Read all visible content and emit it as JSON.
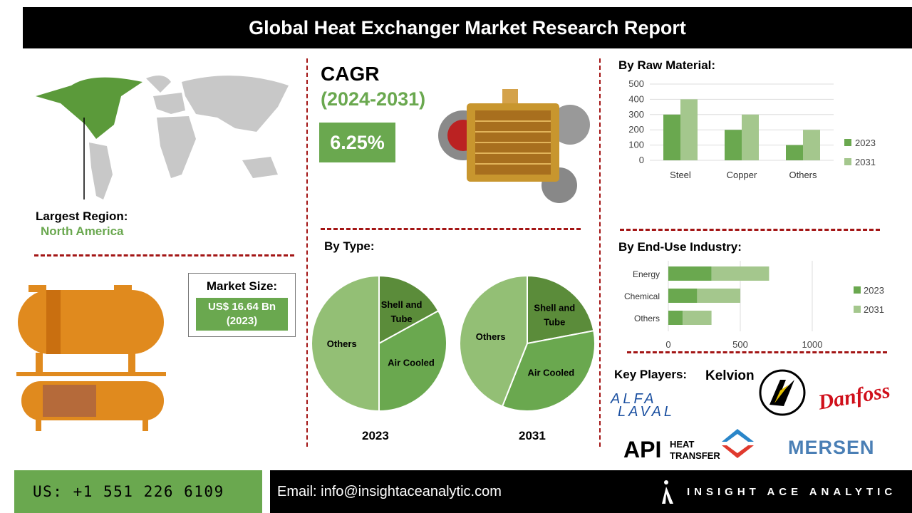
{
  "title": "Global Heat Exchanger Market Research Report",
  "region": {
    "label": "Largest Region:",
    "value": "North America"
  },
  "cagr": {
    "label": "CAGR",
    "period": "(2024-2031)",
    "value": "6.25%"
  },
  "market_size": {
    "label": "Market Size:",
    "value": "US$ 16.64 Bn",
    "year": "(2023)"
  },
  "colors": {
    "dark_green": "#5b8c3a",
    "mid_green": "#6aa84f",
    "light_green": "#a4c78d",
    "pie_others": "#93bf75",
    "divider": "#a31515"
  },
  "chart_data": [
    {
      "type": "bar",
      "title": "By Raw Material:",
      "categories": [
        "Steel",
        "Copper",
        "Others"
      ],
      "series": [
        {
          "name": "2023",
          "values": [
            300,
            200,
            100
          ]
        },
        {
          "name": "2031",
          "values": [
            400,
            300,
            200
          ]
        }
      ],
      "ylim": [
        0,
        500
      ],
      "yticks": [
        "0",
        "100",
        "200",
        "300",
        "400",
        "500"
      ],
      "grid": true,
      "legend": "right"
    },
    {
      "type": "bar",
      "orientation": "horizontal",
      "stacked": true,
      "title": "By End-Use Industry:",
      "categories": [
        "Energy",
        "Chemical",
        "Others"
      ],
      "series": [
        {
          "name": "2023",
          "values": [
            300,
            200,
            100
          ]
        },
        {
          "name": "2031",
          "values": [
            400,
            300,
            200
          ]
        }
      ],
      "xlim": [
        0,
        1000
      ],
      "xticks": [
        "0",
        "500",
        "1000"
      ],
      "grid": true,
      "legend": "right"
    },
    {
      "type": "pie",
      "title": "By Type:",
      "label": "2023",
      "slices": [
        {
          "name": "Shell and Tube",
          "value": 17
        },
        {
          "name": "Air Cooled",
          "value": 33
        },
        {
          "name": "Others",
          "value": 50
        }
      ]
    },
    {
      "type": "pie",
      "label": "2031",
      "slices": [
        {
          "name": "Shell and Tube",
          "value": 22
        },
        {
          "name": "Air Cooled",
          "value": 34
        },
        {
          "name": "Others",
          "value": 44
        }
      ]
    }
  ],
  "key_players": {
    "label": "Key Players:",
    "logos": [
      "Kelvion",
      "Alfa Laval",
      "Danfoss",
      "API HEAT TRANSFER",
      "MERSEN"
    ]
  },
  "footer": {
    "phone": "US: +1 551 226 6109",
    "email": "Email: info@insightaceanalytic.com",
    "brand": "INSIGHT ACE ANALYTIC"
  }
}
